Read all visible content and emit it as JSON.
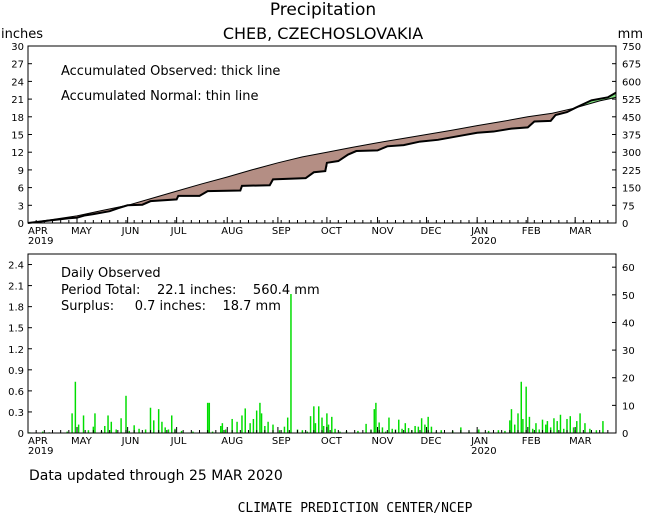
{
  "header": {
    "title": "Precipitation",
    "station": "CHEB,  CZECHOSLOVAKIA",
    "unit_left": "inches",
    "unit_right": "mm"
  },
  "accum_legend": {
    "observed": "Accumulated Observed: thick line",
    "normal": "Accumulated Normal: thin line"
  },
  "daily_legend": {
    "heading": "Daily Observed",
    "period_line": "Period Total:    22.1 inches:    560.4 mm",
    "surplus_line": "Surplus:     0.7 inches:    18.7 mm"
  },
  "footer": {
    "updated": "Data updated through 25 MAR 2020",
    "credit": "CLIMATE PREDICTION CENTER/NCEP"
  },
  "colors": {
    "deficit_fill": "#b48e84",
    "surplus_fill": "#7fe07f",
    "bars": "#00dd00",
    "line": "#000000"
  },
  "chart_data": [
    {
      "type": "area",
      "name": "accumulated",
      "x_tick_labels": [
        "APR",
        "MAY",
        "JUN",
        "JUL",
        "AUG",
        "SEP",
        "OCT",
        "NOV",
        "DEC",
        "JAN",
        "FEB",
        "MAR"
      ],
      "x_tick_years": [
        "2019",
        "",
        "",
        "",
        "",
        "",
        "",
        "",
        "",
        "2020",
        "",
        ""
      ],
      "x_days_total": 360,
      "y_left_label": "inches",
      "y_left_ticks": [
        "0",
        "3",
        "6",
        "9",
        "12",
        "15",
        "18",
        "21",
        "24",
        "27",
        "30"
      ],
      "y_left_range": [
        0,
        30
      ],
      "y_right_label": "mm",
      "y_right_ticks": [
        "0",
        "75",
        "150",
        "225",
        "300",
        "375",
        "450",
        "525",
        "600",
        "675",
        "750"
      ],
      "y_right_range": [
        0,
        750
      ],
      "grid": false,
      "normal_points": [
        [
          0,
          0
        ],
        [
          15,
          0.6
        ],
        [
          30,
          1.2
        ],
        [
          45,
          2.1
        ],
        [
          61,
          3.0
        ],
        [
          76,
          4.2
        ],
        [
          91,
          5.4
        ],
        [
          106,
          6.6
        ],
        [
          122,
          7.8
        ],
        [
          137,
          9.0
        ],
        [
          153,
          10.2
        ],
        [
          168,
          11.2
        ],
        [
          183,
          12.0
        ],
        [
          198,
          12.8
        ],
        [
          214,
          13.6
        ],
        [
          229,
          14.3
        ],
        [
          244,
          15.0
        ],
        [
          259,
          15.7
        ],
        [
          275,
          16.5
        ],
        [
          290,
          17.2
        ],
        [
          306,
          18.0
        ],
        [
          321,
          18.6
        ],
        [
          335,
          19.5
        ],
        [
          350,
          20.7
        ],
        [
          360,
          21.3
        ]
      ],
      "observed_points": [
        [
          0,
          0
        ],
        [
          25,
          0.8
        ],
        [
          30,
          0.9
        ],
        [
          35,
          1.3
        ],
        [
          40,
          1.5
        ],
        [
          50,
          2.0
        ],
        [
          55,
          2.5
        ],
        [
          61,
          3.0
        ],
        [
          70,
          3.1
        ],
        [
          75,
          3.7
        ],
        [
          91,
          4.0
        ],
        [
          92,
          4.6
        ],
        [
          105,
          4.6
        ],
        [
          110,
          5.4
        ],
        [
          130,
          5.5
        ],
        [
          131,
          6.3
        ],
        [
          148,
          6.4
        ],
        [
          150,
          7.4
        ],
        [
          170,
          7.6
        ],
        [
          175,
          8.6
        ],
        [
          182,
          8.8
        ],
        [
          183,
          10.2
        ],
        [
          190,
          10.5
        ],
        [
          196,
          11.6
        ],
        [
          201,
          12.2
        ],
        [
          214,
          12.3
        ],
        [
          220,
          13.0
        ],
        [
          230,
          13.2
        ],
        [
          240,
          13.8
        ],
        [
          251,
          14.1
        ],
        [
          265,
          14.8
        ],
        [
          275,
          15.3
        ],
        [
          285,
          15.5
        ],
        [
          296,
          16.0
        ],
        [
          306,
          16.2
        ],
        [
          310,
          17.2
        ],
        [
          320,
          17.3
        ],
        [
          323,
          18.3
        ],
        [
          330,
          18.8
        ],
        [
          335,
          19.5
        ],
        [
          345,
          20.8
        ],
        [
          355,
          21.3
        ],
        [
          360,
          22.1
        ]
      ]
    },
    {
      "type": "bar",
      "name": "daily",
      "x_tick_labels": [
        "APR",
        "MAY",
        "JUN",
        "JUL",
        "AUG",
        "SEP",
        "OCT",
        "NOV",
        "DEC",
        "JAN",
        "FEB",
        "MAR"
      ],
      "x_tick_years": [
        "2019",
        "",
        "",
        "",
        "",
        "",
        "",
        "",
        "",
        "2020",
        "",
        ""
      ],
      "x_days_total": 360,
      "y_left_ticks": [
        "0",
        "0.3",
        "0.6",
        "0.9",
        "1.2",
        "1.5",
        "1.8",
        "2.1",
        "2.4"
      ],
      "y_left_range": [
        0,
        2.55
      ],
      "y_right_ticks": [
        "0",
        "10",
        "20",
        "30",
        "40",
        "50",
        "60"
      ],
      "y_right_range": [
        0,
        64.77
      ],
      "grid": false,
      "bars": [
        [
          1,
          0.01
        ],
        [
          9,
          0.02
        ],
        [
          13,
          0.01
        ],
        [
          24,
          0.02
        ],
        [
          27,
          0.28
        ],
        [
          29,
          0.73
        ],
        [
          31,
          0.12
        ],
        [
          34,
          0.25
        ],
        [
          37,
          0.04
        ],
        [
          40,
          0.09
        ],
        [
          41,
          0.28
        ],
        [
          45,
          0.03
        ],
        [
          47,
          0.1
        ],
        [
          49,
          0.25
        ],
        [
          51,
          0.16
        ],
        [
          54,
          0.05
        ],
        [
          57,
          0.21
        ],
        [
          60,
          0.53
        ],
        [
          62,
          0.03
        ],
        [
          65,
          0.11
        ],
        [
          68,
          0.06
        ],
        [
          72,
          0.05
        ],
        [
          75,
          0.36
        ],
        [
          77,
          0.18
        ],
        [
          80,
          0.34
        ],
        [
          82,
          0.16
        ],
        [
          84,
          0.08
        ],
        [
          86,
          0.05
        ],
        [
          88,
          0.25
        ],
        [
          90,
          0.06
        ],
        [
          94,
          0.03
        ],
        [
          101,
          0.02
        ],
        [
          110,
          0.43
        ],
        [
          111,
          0.43
        ],
        [
          113,
          0.02
        ],
        [
          118,
          0.1
        ],
        [
          119,
          0.14
        ],
        [
          121,
          0.05
        ],
        [
          125,
          0.2
        ],
        [
          128,
          0.16
        ],
        [
          131,
          0.25
        ],
        [
          133,
          0.35
        ],
        [
          136,
          0.14
        ],
        [
          138,
          0.2
        ],
        [
          140,
          0.32
        ],
        [
          142,
          0.43
        ],
        [
          143,
          0.28
        ],
        [
          145,
          0.1
        ],
        [
          147,
          0.16
        ],
        [
          150,
          0.12
        ],
        [
          154,
          0.04
        ],
        [
          157,
          0.09
        ],
        [
          159,
          0.22
        ],
        [
          161,
          1.98
        ],
        [
          165,
          0.05
        ],
        [
          168,
          0.04
        ],
        [
          171,
          0.02
        ],
        [
          173,
          0.24
        ],
        [
          175,
          0.38
        ],
        [
          176,
          0.14
        ],
        [
          178,
          0.38
        ],
        [
          180,
          0.22
        ],
        [
          181,
          0.1
        ],
        [
          183,
          0.28
        ],
        [
          184,
          0.12
        ],
        [
          186,
          0.23
        ],
        [
          188,
          0.06
        ],
        [
          191,
          0.02
        ],
        [
          195,
          0.03
        ],
        [
          202,
          0.03
        ],
        [
          207,
          0.13
        ],
        [
          210,
          0.05
        ],
        [
          212,
          0.34
        ],
        [
          213,
          0.43
        ],
        [
          215,
          0.15
        ],
        [
          217,
          0.08
        ],
        [
          219,
          0.02
        ],
        [
          221,
          0.22
        ],
        [
          223,
          0.06
        ],
        [
          225,
          0.05
        ],
        [
          227,
          0.19
        ],
        [
          229,
          0.06
        ],
        [
          231,
          0.14
        ],
        [
          233,
          0.07
        ],
        [
          235,
          0.04
        ],
        [
          237,
          0.1
        ],
        [
          239,
          0.09
        ],
        [
          241,
          0.21
        ],
        [
          243,
          0.12
        ],
        [
          245,
          0.23
        ],
        [
          247,
          0.09
        ],
        [
          250,
          0.02
        ],
        [
          253,
          0.04
        ],
        [
          260,
          0.03
        ],
        [
          265,
          0.08
        ],
        [
          270,
          0.02
        ],
        [
          276,
          0.05
        ],
        [
          282,
          0.03
        ],
        [
          288,
          0.04
        ],
        [
          292,
          0.03
        ],
        [
          295,
          0.18
        ],
        [
          296,
          0.34
        ],
        [
          298,
          0.12
        ],
        [
          300,
          0.28
        ],
        [
          302,
          0.73
        ],
        [
          303,
          0.2
        ],
        [
          305,
          0.66
        ],
        [
          307,
          0.23
        ],
        [
          309,
          0.06
        ],
        [
          311,
          0.14
        ],
        [
          313,
          0.05
        ],
        [
          315,
          0.19
        ],
        [
          317,
          0.12
        ],
        [
          318,
          0.17
        ],
        [
          320,
          0.08
        ],
        [
          322,
          0.21
        ],
        [
          324,
          0.17
        ],
        [
          326,
          0.26
        ],
        [
          328,
          0.06
        ],
        [
          330,
          0.2
        ],
        [
          332,
          0.24
        ],
        [
          334,
          0.08
        ],
        [
          336,
          0.17
        ],
        [
          338,
          0.28
        ],
        [
          341,
          0.14
        ],
        [
          344,
          0.06
        ],
        [
          348,
          0.04
        ],
        [
          352,
          0.17
        ]
      ]
    }
  ]
}
